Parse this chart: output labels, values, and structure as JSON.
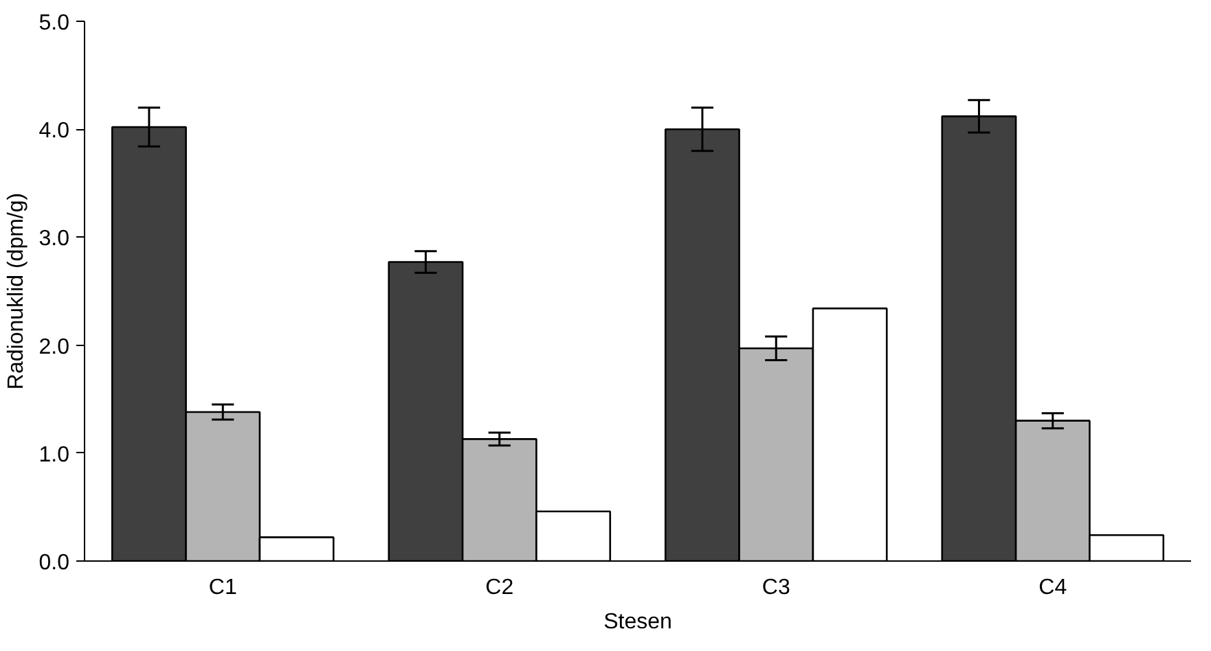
{
  "chart_data": {
    "type": "bar",
    "xlabel": "Stesen",
    "ylabel": "Radionuklid (dpm/g)",
    "categories": [
      "C1",
      "C2",
      "C3",
      "C4"
    ],
    "series": [
      {
        "color": "#404040",
        "values": [
          4.02,
          2.77,
          4.0,
          4.12
        ],
        "errors": [
          0.18,
          0.1,
          0.2,
          0.15
        ]
      },
      {
        "color": "#b4b4b4",
        "values": [
          1.38,
          1.13,
          1.97,
          1.3
        ],
        "errors": [
          0.07,
          0.06,
          0.11,
          0.07
        ]
      },
      {
        "color": "#ffffff",
        "values": [
          0.22,
          0.46,
          2.34,
          0.24
        ]
      }
    ],
    "ylim": [
      0,
      5
    ],
    "yticks": [
      {
        "value": 0,
        "label": "0.0"
      },
      {
        "value": 1,
        "label": "1.0"
      },
      {
        "value": 2,
        "label": "2.0"
      },
      {
        "value": 3,
        "label": "3.0"
      },
      {
        "value": 4,
        "label": "4.0"
      },
      {
        "value": 5,
        "label": "5.0"
      }
    ],
    "grid": false
  }
}
